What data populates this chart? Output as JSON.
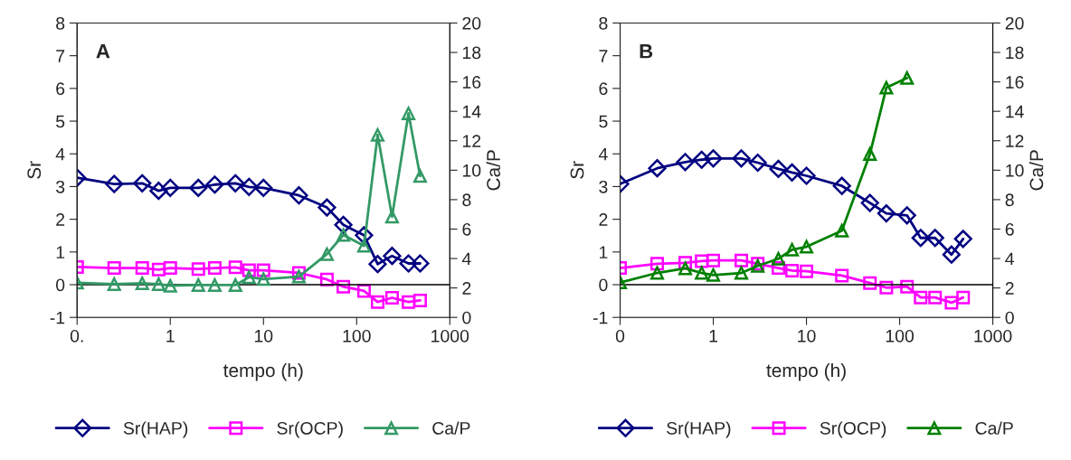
{
  "chart_data": [
    {
      "type": "line",
      "title": "A",
      "xlabel": "tempo (h)",
      "ylabel": "Sr",
      "y2label": "Ca/P",
      "log": "x",
      "x": [
        0.1,
        0.25,
        0.5,
        0.75,
        1,
        2,
        3,
        5,
        7,
        10,
        24,
        48,
        72,
        120,
        168,
        240,
        360,
        480
      ],
      "xlim": [
        0.1,
        1000
      ],
      "xticks": [
        {
          "value": 0.1,
          "label": "0."
        },
        1,
        10,
        100,
        1000
      ],
      "ylim": [
        -1,
        8
      ],
      "yticks": [
        -1,
        0,
        1,
        2,
        3,
        4,
        5,
        6,
        7,
        8
      ],
      "y2lim": [
        0,
        20
      ],
      "y2ticks": [
        0,
        2,
        4,
        6,
        8,
        10,
        12,
        14,
        16,
        18,
        20
      ],
      "ref_lines": [
        {
          "axis": "y",
          "value": 0,
          "color": "#000000"
        }
      ],
      "legend": "bottom",
      "grid": false,
      "line_style": "solid",
      "series": [
        {
          "name": "Sr(HAP)",
          "color": "#000080",
          "marker": "diamond",
          "values": [
            3.27,
            3.08,
            3.1,
            2.87,
            2.96,
            2.96,
            3.06,
            3.1,
            2.99,
            2.96,
            2.73,
            2.36,
            1.83,
            1.51,
            0.63,
            0.88,
            0.65,
            0.65
          ]
        },
        {
          "name": "Sr(OCP)",
          "color": "#ff00ff",
          "marker": "square",
          "values": [
            0.54,
            0.51,
            0.51,
            0.46,
            0.51,
            0.48,
            0.51,
            0.53,
            0.44,
            0.44,
            0.36,
            0.16,
            -0.06,
            -0.19,
            -0.53,
            -0.4,
            -0.53,
            -0.48
          ]
        },
        {
          "name": "Ca/P",
          "color": "#339966",
          "marker": "triangle",
          "axis": "y2",
          "values": [
            2.36,
            2.26,
            2.32,
            2.26,
            2.15,
            2.2,
            2.2,
            2.2,
            2.73,
            2.6,
            2.77,
            4.3,
            5.6,
            4.86,
            12.4,
            6.84,
            13.86,
            9.6
          ]
        }
      ]
    },
    {
      "type": "line",
      "title": "B",
      "xlabel": "tempo (h)",
      "ylabel": "Sr",
      "y2label": "Ca/P",
      "log": "x",
      "x": [
        0.1,
        0.25,
        0.5,
        0.75,
        1,
        2,
        3,
        5,
        7,
        10,
        24,
        48,
        72,
        120,
        168,
        240,
        360,
        480
      ],
      "xlim": [
        0.1,
        1000
      ],
      "xticks": [
        {
          "value": 0.1,
          "label": "0"
        },
        1,
        10,
        100,
        1000
      ],
      "ylim": [
        -1,
        8
      ],
      "yticks": [
        -1,
        0,
        1,
        2,
        3,
        4,
        5,
        6,
        7,
        8
      ],
      "y2lim": [
        0,
        20
      ],
      "y2ticks": [
        0,
        2,
        4,
        6,
        8,
        10,
        12,
        14,
        16,
        18,
        20
      ],
      "ref_lines": [
        {
          "axis": "y",
          "value": 0,
          "color": "#000000"
        }
      ],
      "legend": "bottom",
      "grid": false,
      "line_style": "solid",
      "series": [
        {
          "name": "Sr(HAP)",
          "color": "#000080",
          "marker": "diamond",
          "values": [
            3.08,
            3.56,
            3.75,
            3.82,
            3.86,
            3.86,
            3.73,
            3.54,
            3.43,
            3.33,
            3.02,
            2.5,
            2.18,
            2.12,
            1.43,
            1.43,
            0.92,
            1.4
          ]
        },
        {
          "name": "Sr(OCP)",
          "color": "#ff00ff",
          "marker": "square",
          "values": [
            0.51,
            0.64,
            0.67,
            0.72,
            0.74,
            0.74,
            0.64,
            0.51,
            0.43,
            0.41,
            0.28,
            0.05,
            -0.09,
            -0.06,
            -0.39,
            -0.39,
            -0.55,
            -0.39
          ]
        },
        {
          "name": "Ca/P",
          "color": "#008000",
          "marker": "triangle",
          "axis": "y2",
          "values": [
            2.37,
            3.02,
            3.33,
            3.02,
            2.88,
            3.02,
            3.5,
            3.99,
            4.6,
            4.8,
            5.89,
            11.1,
            15.6,
            16.26,
            null,
            null,
            null,
            null
          ]
        }
      ]
    }
  ]
}
